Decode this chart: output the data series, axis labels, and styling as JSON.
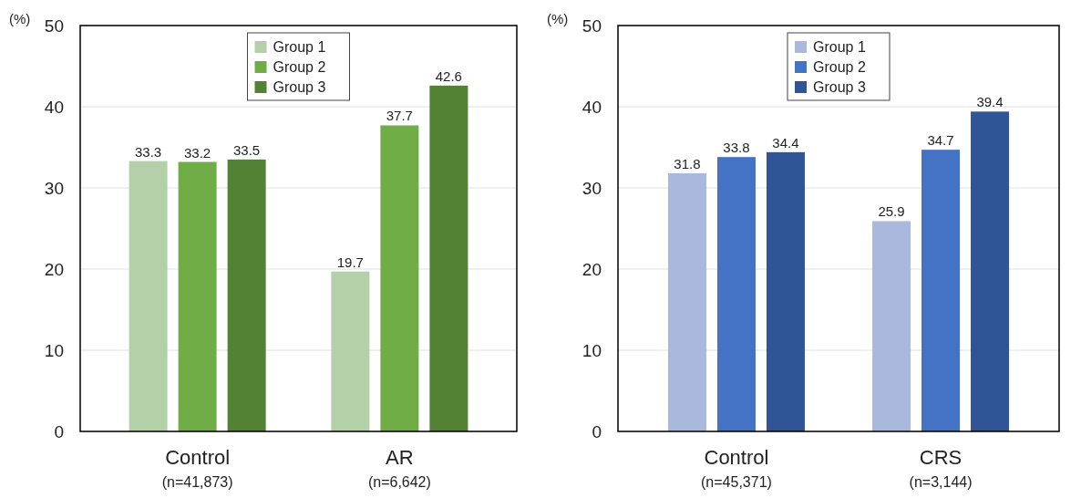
{
  "chart_data": [
    {
      "type": "bar",
      "ylabel": "(%)",
      "categories": [
        "Control\n(n=41,873)",
        "AR\n(n=6,642)"
      ],
      "series": [
        {
          "name": "Group 1",
          "color": "#b3d0a8",
          "values": [
            33.3,
            19.7
          ]
        },
        {
          "name": "Group 2",
          "color": "#70ad47",
          "values": [
            33.2,
            37.7
          ]
        },
        {
          "name": "Group 3",
          "color": "#548235",
          "values": [
            33.5,
            42.6
          ]
        }
      ],
      "ylim": [
        0,
        50
      ],
      "yticks": [
        0,
        10,
        20,
        30,
        40,
        50
      ],
      "grid": "y",
      "legend": "top",
      "data_labels": true
    },
    {
      "type": "bar",
      "ylabel": "(%)",
      "categories": [
        "Control\n(n=45,371)",
        "CRS\n(n=3,144)"
      ],
      "series": [
        {
          "name": "Group 1",
          "color": "#a9b8dc",
          "values": [
            31.8,
            25.9
          ]
        },
        {
          "name": "Group 2",
          "color": "#4472c4",
          "values": [
            33.8,
            34.7
          ]
        },
        {
          "name": "Group 3",
          "color": "#2f5597",
          "values": [
            34.4,
            39.4
          ]
        }
      ],
      "ylim": [
        0,
        50
      ],
      "yticks": [
        0,
        10,
        20,
        30,
        40,
        50
      ],
      "grid": "y",
      "legend": "top",
      "data_labels": true
    }
  ]
}
